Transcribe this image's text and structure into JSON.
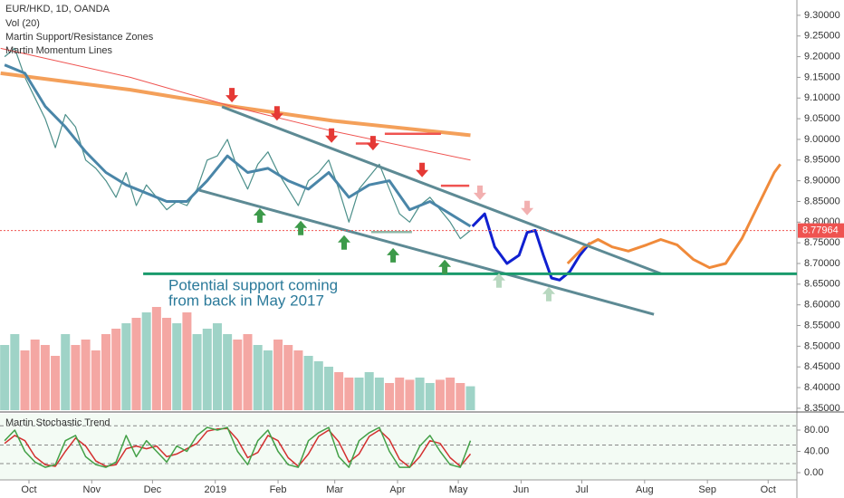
{
  "chart_data": {
    "type": "line",
    "title": "EUR/HKD, 1D, OANDA",
    "indicators": [
      "Vol (20)",
      "Martin Support/Resistance Zones",
      "Martin Momentum Lines"
    ],
    "xlim": [
      -14.3,
      379.2
    ],
    "xticks": [
      {
        "value": 0,
        "label": "Oct"
      },
      {
        "value": 31,
        "label": "Nov"
      },
      {
        "value": 61,
        "label": "Dec"
      },
      {
        "value": 92,
        "label": "2019"
      },
      {
        "value": 123,
        "label": "Feb"
      },
      {
        "value": 151,
        "label": "Mar"
      },
      {
        "value": 182,
        "label": "Apr"
      },
      {
        "value": 212,
        "label": "May"
      },
      {
        "value": 243,
        "label": "Jun"
      },
      {
        "value": 273,
        "label": "Jul"
      },
      {
        "value": 304,
        "label": "Aug"
      },
      {
        "value": 335,
        "label": "Sep"
      },
      {
        "value": 365,
        "label": "Oct"
      }
    ],
    "ylim": [
      8.341,
      9.337
    ],
    "yticks": [
      {
        "value": 9.3,
        "label": "9.30000"
      },
      {
        "value": 9.25,
        "label": "9.25000"
      },
      {
        "value": 9.2,
        "label": "9.20000"
      },
      {
        "value": 9.15,
        "label": "9.15000"
      },
      {
        "value": 9.1,
        "label": "9.10000"
      },
      {
        "value": 9.05,
        "label": "9.05000"
      },
      {
        "value": 9.0,
        "label": "9.00000"
      },
      {
        "value": 8.95,
        "label": "8.95000"
      },
      {
        "value": 8.9,
        "label": "8.90000"
      },
      {
        "value": 8.85,
        "label": "8.85000"
      },
      {
        "value": 8.8,
        "label": "8.80000"
      },
      {
        "value": 8.75,
        "label": "8.75000"
      },
      {
        "value": 8.7,
        "label": "8.70000"
      },
      {
        "value": 8.65,
        "label": "8.65000"
      },
      {
        "value": 8.6,
        "label": "8.60000"
      },
      {
        "value": 8.55,
        "label": "8.55000"
      },
      {
        "value": 8.5,
        "label": "8.50000"
      },
      {
        "value": 8.45,
        "label": "8.45000"
      },
      {
        "value": 8.4,
        "label": "8.40000"
      },
      {
        "value": 8.35,
        "label": "8.35000"
      }
    ],
    "last_price": 8.77964,
    "last_price_color": "#ef5350",
    "x": [
      -12,
      -7,
      -2,
      3,
      8,
      13,
      18,
      23,
      28,
      33,
      38,
      43,
      48,
      53,
      58,
      63,
      68,
      73,
      78,
      83,
      88,
      93,
      98,
      103,
      108,
      113,
      118,
      123,
      128,
      133,
      138,
      143,
      148,
      153,
      158,
      163,
      168,
      173,
      178,
      183,
      188,
      193,
      198,
      203,
      208,
      213,
      218
    ],
    "series": [
      {
        "color": "#4c8f8a",
        "width": 1.2,
        "values": [
          9.2,
          9.22,
          9.15,
          9.1,
          9.05,
          8.98,
          9.06,
          9.03,
          8.95,
          8.93,
          8.9,
          8.86,
          8.92,
          8.84,
          8.89,
          8.86,
          8.83,
          8.85,
          8.84,
          8.88,
          8.95,
          8.96,
          9.0,
          8.93,
          8.88,
          8.94,
          8.97,
          8.92,
          8.88,
          8.84,
          8.9,
          8.92,
          8.95,
          8.88,
          8.8,
          8.88,
          8.91,
          8.94,
          8.88,
          8.82,
          8.8,
          8.84,
          8.86,
          8.83,
          8.8,
          8.76,
          8.78
        ]
      },
      {
        "color": "#f4a05a",
        "width": 4,
        "x": [
          -14,
          50,
          100,
          150,
          218
        ],
        "values": [
          9.16,
          9.12,
          9.08,
          9.045,
          9.01
        ]
      },
      {
        "color": "#ef5350",
        "width": 1,
        "x": [
          -14,
          50,
          100,
          150,
          218
        ],
        "values": [
          9.22,
          9.15,
          9.08,
          9.02,
          8.95
        ]
      },
      {
        "color": "#4a86a8",
        "width": 3,
        "x": [
          -12,
          -2,
          8,
          18,
          28,
          38,
          48,
          58,
          68,
          78,
          88,
          98,
          108,
          118,
          128,
          138,
          148,
          158,
          168,
          178,
          188,
          198,
          208,
          218
        ],
        "values": [
          9.18,
          9.16,
          9.08,
          9.03,
          8.97,
          8.92,
          8.89,
          8.87,
          8.85,
          8.85,
          8.9,
          8.96,
          8.92,
          8.93,
          8.9,
          8.88,
          8.92,
          8.86,
          8.89,
          8.9,
          8.83,
          8.85,
          8.82,
          8.79
        ]
      },
      {
        "color": "#1020d0",
        "width": 3,
        "x": [
          219,
          225,
          230,
          236,
          242,
          246,
          250,
          254,
          258,
          262,
          267,
          272,
          277
        ],
        "values": [
          8.79,
          8.82,
          8.74,
          8.7,
          8.72,
          8.775,
          8.78,
          8.72,
          8.665,
          8.66,
          8.68,
          8.72,
          8.75
        ]
      },
      {
        "color": "#f08a3a",
        "width": 3,
        "x": [
          266,
          274,
          281,
          288,
          296,
          305,
          312,
          320,
          328,
          336,
          344,
          352,
          360,
          368,
          371
        ],
        "values": [
          8.7,
          8.74,
          8.758,
          8.74,
          8.73,
          8.745,
          8.758,
          8.745,
          8.71,
          8.69,
          8.7,
          8.76,
          8.84,
          8.92,
          8.94
        ]
      }
    ],
    "lines": [
      {
        "color": "#5d8a94",
        "x": [
          95.3,
          312.2
        ],
        "values": [
          9.079,
          8.675
        ]
      },
      {
        "color": "#5d8a94",
        "x": [
          84.1,
          308.6
        ],
        "values": [
          8.877,
          8.577
        ]
      },
      {
        "color": "#1a9a6c",
        "x": [
          56.4,
          379.2
        ],
        "values": [
          8.675,
          8.675
        ]
      }
    ],
    "zones": [
      {
        "color": "#ef5350",
        "x": [
          175.7,
          203.4
        ],
        "values": [
          9.0135,
          9.0135
        ]
      },
      {
        "color": "#ef5350",
        "x": [
          161.4,
          169.0
        ],
        "values": [
          8.99,
          8.99
        ]
      },
      {
        "color": "#ef5350",
        "x": [
          203.4,
          217.4
        ],
        "values": [
          8.888,
          8.888
        ]
      },
      {
        "color": "#8fb8a8",
        "x": [
          169.0,
          189.1
        ],
        "values": [
          8.776,
          8.776
        ]
      }
    ],
    "down_markers": {
      "x": [
        100.2,
        122.5,
        149.4,
        169.9,
        194.1,
        222.7,
        246.0
      ],
      "values": [
        9.107,
        9.063,
        9.009,
        8.991,
        8.926,
        8.871,
        8.834
      ],
      "colors": [
        "#e53935",
        "#e53935",
        "#e53935",
        "#e53935",
        "#e53935",
        "#f2b0b0",
        "#f2b0b0"
      ]
    },
    "up_markers": {
      "x": [
        114.0,
        134.2,
        155.6,
        179.8,
        205.3,
        232.1,
        256.7
      ],
      "values": [
        8.816,
        8.786,
        8.751,
        8.72,
        8.692,
        8.659,
        8.626
      ],
      "colors": [
        "#3d9a4a",
        "#3d9a4a",
        "#3d9a4a",
        "#3d9a4a",
        "#3d9a4a",
        "#b8d8c0",
        "#b8d8c0"
      ]
    },
    "annotation": [
      "Potential support coming",
      "from back in May 2017"
    ],
    "volume": {
      "ylim": [
        0,
        100
      ],
      "up_color": "#9fd3c7",
      "down_color": "#f4a7a3",
      "values": [
        60,
        70,
        55,
        65,
        60,
        50,
        70,
        60,
        65,
        55,
        70,
        75,
        80,
        85,
        90,
        95,
        85,
        80,
        90,
        70,
        75,
        80,
        70,
        65,
        70,
        60,
        55,
        65,
        60,
        55,
        50,
        45,
        40,
        35,
        30,
        30,
        35,
        30,
        25,
        30,
        28,
        30,
        25,
        28,
        30,
        25,
        22
      ]
    },
    "stochastic": {
      "title": "Martin Stochastic Trend",
      "ylim": [
        -13.6,
        110.6
      ],
      "yticks": [
        {
          "value": 80,
          "label": "80.00"
        },
        {
          "value": 40,
          "label": "40.00"
        },
        {
          "value": 0,
          "label": "0.00"
        }
      ],
      "levels": [
        88,
        52,
        17
      ],
      "series": [
        {
          "color": "#d32f2f",
          "values": [
            55,
            70,
            60,
            30,
            15,
            12,
            40,
            65,
            50,
            22,
            12,
            15,
            45,
            50,
            45,
            50,
            30,
            35,
            45,
            55,
            78,
            82,
            83,
            62,
            28,
            38,
            70,
            60,
            28,
            12,
            35,
            68,
            80,
            58,
            20,
            35,
            68,
            80,
            62,
            25,
            10,
            30,
            60,
            55,
            28,
            12,
            35
          ]
        },
        {
          "color": "#43a047",
          "values": [
            60,
            80,
            40,
            20,
            10,
            15,
            60,
            70,
            30,
            15,
            10,
            20,
            70,
            30,
            60,
            40,
            20,
            50,
            40,
            70,
            85,
            80,
            85,
            40,
            15,
            60,
            80,
            40,
            15,
            10,
            60,
            75,
            85,
            30,
            10,
            60,
            75,
            85,
            40,
            10,
            10,
            50,
            70,
            40,
            15,
            10,
            60
          ]
        }
      ]
    }
  }
}
